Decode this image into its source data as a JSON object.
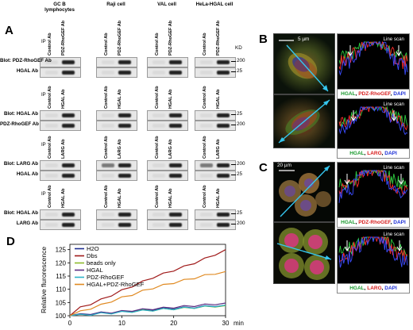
{
  "panel_labels": {
    "A": "A",
    "B": "B",
    "C": "C",
    "D": "D"
  },
  "panelA": {
    "columns": [
      {
        "label": "GC B\nlymphocytes"
      },
      {
        "label": "Raji cell"
      },
      {
        "label": "VAL cell"
      },
      {
        "label": "HeLa-HGAL cell"
      }
    ],
    "kd_label": "KD",
    "blocks": [
      {
        "ip": "IP",
        "lanes": [
          "Control Ab",
          "PDZ-RhoGEF Ab"
        ],
        "blots": [
          "Blot: PDZ-RhoGEF Ab",
          "HGAL Ab"
        ],
        "markers": [
          "200",
          "25"
        ]
      },
      {
        "ip": "IP",
        "lanes": [
          "Control Ab",
          "HGAL Ab"
        ],
        "blots": [
          "Blot: HGAL Ab",
          "PDZ-RhoGEF Ab"
        ],
        "markers": [
          "25",
          "200"
        ]
      },
      {
        "ip": "IP",
        "lanes": [
          "Control Ab",
          "LARG Ab"
        ],
        "blots": [
          "Blot: LARG Ab",
          "HGAL Ab"
        ],
        "markers": [
          "200",
          "25"
        ]
      },
      {
        "ip": "IP",
        "lanes": [
          "Control Ab",
          "HGAL Ab"
        ],
        "blots": [
          "Blot: HGAL Ab",
          "LARG Ab"
        ],
        "markers": [
          "25",
          "200"
        ]
      }
    ]
  },
  "panelB": {
    "scale": "5 µm",
    "line_scan": "Line scan",
    "legends": [
      [
        {
          "t": "HGAL",
          "c": "g"
        },
        {
          "t": ", ",
          "c": ""
        },
        {
          "t": "PDZ-RhoGEF",
          "c": "r"
        },
        {
          "t": ", ",
          "c": ""
        },
        {
          "t": "DAPI",
          "c": "b"
        }
      ],
      [
        {
          "t": "HGAL",
          "c": "g"
        },
        {
          "t": ", ",
          "c": ""
        },
        {
          "t": "LARG",
          "c": "r"
        },
        {
          "t": ", ",
          "c": ""
        },
        {
          "t": "DAPI",
          "c": "b"
        }
      ]
    ]
  },
  "panelC": {
    "scale": "20 µm",
    "line_scan": "Line scan",
    "legends": [
      [
        {
          "t": "HGAL",
          "c": "g"
        },
        {
          "t": ", ",
          "c": ""
        },
        {
          "t": "PDZ-RhoGEF",
          "c": "r"
        },
        {
          "t": ", ",
          "c": ""
        },
        {
          "t": "DAPI",
          "c": "b"
        }
      ],
      [
        {
          "t": "HGAL",
          "c": "g"
        },
        {
          "t": ", ",
          "c": ""
        },
        {
          "t": "LARG",
          "c": "r"
        },
        {
          "t": ", ",
          "c": ""
        },
        {
          "t": "DAPI",
          "c": "b"
        }
      ]
    ]
  },
  "chart_data": {
    "type": "line",
    "ylabel": "Relative flurorescence",
    "xunit": "min",
    "xlim": [
      0,
      30
    ],
    "ylim": [
      100,
      127
    ],
    "xticks": [
      0,
      10,
      20,
      30
    ],
    "yticks": [
      100,
      105,
      110,
      115,
      120,
      125
    ],
    "legend_position": "top-left",
    "x": [
      0,
      2,
      4,
      6,
      8,
      10,
      12,
      14,
      16,
      18,
      20,
      22,
      24,
      26,
      28,
      30
    ],
    "series": [
      {
        "name": "H2O",
        "color": "#1f2d8f",
        "values": [
          100,
          100.4,
          100.8,
          101.1,
          101.3,
          101.5,
          101.8,
          102.0,
          102.3,
          102.6,
          102.8,
          103.0,
          103.2,
          103.5,
          103.8,
          104.0
        ]
      },
      {
        "name": "Dbs",
        "color": "#a01a1a",
        "values": [
          100,
          103.0,
          104.5,
          106.0,
          107.8,
          109.5,
          111.2,
          112.8,
          114.5,
          115.8,
          117.2,
          118.5,
          120.0,
          121.5,
          123.2,
          125.0
        ]
      },
      {
        "name": "beads only",
        "color": "#8dbb2a",
        "values": [
          100,
          100.2,
          100.6,
          100.9,
          101.1,
          101.4,
          101.6,
          101.9,
          102.1,
          102.4,
          102.6,
          102.8,
          103.1,
          103.3,
          103.6,
          103.8
        ]
      },
      {
        "name": "HGAL",
        "color": "#5a2d82",
        "values": [
          100,
          100.3,
          100.7,
          101.0,
          101.3,
          101.6,
          102.0,
          102.3,
          102.6,
          102.9,
          103.2,
          103.5,
          103.8,
          104.1,
          104.5,
          104.8
        ]
      },
      {
        "name": "PDZ-RhoGEF",
        "color": "#2bb3c9",
        "values": [
          100,
          100.2,
          100.5,
          100.8,
          101.0,
          101.3,
          101.6,
          101.8,
          102.1,
          102.4,
          102.6,
          102.9,
          103.1,
          103.4,
          103.7,
          104.0
        ]
      },
      {
        "name": "HGAL+PDZ-RhoGEF",
        "color": "#e08a22",
        "values": [
          100,
          101.5,
          102.8,
          104.0,
          105.5,
          106.8,
          108.0,
          109.3,
          110.5,
          111.5,
          112.5,
          113.4,
          114.3,
          115.2,
          116.0,
          116.7
        ]
      }
    ]
  }
}
